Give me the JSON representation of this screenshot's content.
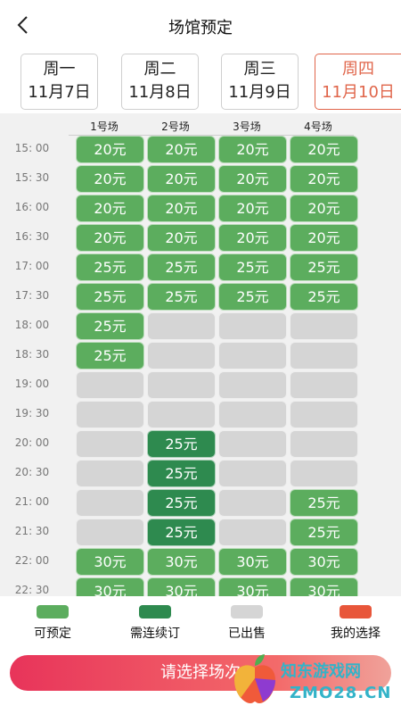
{
  "header": {
    "title": "场馆预定",
    "back_icon": "chevron-left-icon"
  },
  "dates": [
    {
      "weekday": "周一",
      "date": "11月7日",
      "selected": false
    },
    {
      "weekday": "周二",
      "date": "11月8日",
      "selected": false
    },
    {
      "weekday": "周三",
      "date": "11月9日",
      "selected": false
    },
    {
      "weekday": "周四",
      "date": "11月10日",
      "selected": true
    }
  ],
  "courts": [
    "1号场",
    "2号场",
    "3号场",
    "4号场"
  ],
  "schedule": [
    {
      "time": "15: 00",
      "slots": [
        [
          "available",
          "20元"
        ],
        [
          "available",
          "20元"
        ],
        [
          "available",
          "20元"
        ],
        [
          "available",
          "20元"
        ]
      ]
    },
    {
      "time": "15: 30",
      "slots": [
        [
          "available",
          "20元"
        ],
        [
          "available",
          "20元"
        ],
        [
          "available",
          "20元"
        ],
        [
          "available",
          "20元"
        ]
      ]
    },
    {
      "time": "16: 00",
      "slots": [
        [
          "available",
          "20元"
        ],
        [
          "available",
          "20元"
        ],
        [
          "available",
          "20元"
        ],
        [
          "available",
          "20元"
        ]
      ]
    },
    {
      "time": "16: 30",
      "slots": [
        [
          "available",
          "20元"
        ],
        [
          "available",
          "20元"
        ],
        [
          "available",
          "20元"
        ],
        [
          "available",
          "20元"
        ]
      ]
    },
    {
      "time": "17: 00",
      "slots": [
        [
          "available",
          "25元"
        ],
        [
          "available",
          "25元"
        ],
        [
          "available",
          "25元"
        ],
        [
          "available",
          "25元"
        ]
      ]
    },
    {
      "time": "17: 30",
      "slots": [
        [
          "available",
          "25元"
        ],
        [
          "available",
          "25元"
        ],
        [
          "available",
          "25元"
        ],
        [
          "available",
          "25元"
        ]
      ]
    },
    {
      "time": "18: 00",
      "slots": [
        [
          "available",
          "25元"
        ],
        [
          "sold",
          ""
        ],
        [
          "sold",
          ""
        ],
        [
          "sold",
          ""
        ]
      ]
    },
    {
      "time": "18: 30",
      "slots": [
        [
          "available",
          "25元"
        ],
        [
          "sold",
          ""
        ],
        [
          "sold",
          ""
        ],
        [
          "sold",
          ""
        ]
      ]
    },
    {
      "time": "19: 00",
      "slots": [
        [
          "sold",
          ""
        ],
        [
          "sold",
          ""
        ],
        [
          "sold",
          ""
        ],
        [
          "sold",
          ""
        ]
      ]
    },
    {
      "time": "19: 30",
      "slots": [
        [
          "sold",
          ""
        ],
        [
          "sold",
          ""
        ],
        [
          "sold",
          ""
        ],
        [
          "sold",
          ""
        ]
      ]
    },
    {
      "time": "20: 00",
      "slots": [
        [
          "sold",
          ""
        ],
        [
          "renew",
          "25元"
        ],
        [
          "sold",
          ""
        ],
        [
          "sold",
          ""
        ]
      ]
    },
    {
      "time": "20: 30",
      "slots": [
        [
          "sold",
          ""
        ],
        [
          "renew",
          "25元"
        ],
        [
          "sold",
          ""
        ],
        [
          "sold",
          ""
        ]
      ]
    },
    {
      "time": "21: 00",
      "slots": [
        [
          "sold",
          ""
        ],
        [
          "renew",
          "25元"
        ],
        [
          "sold",
          ""
        ],
        [
          "available",
          "25元"
        ]
      ]
    },
    {
      "time": "21: 30",
      "slots": [
        [
          "sold",
          ""
        ],
        [
          "renew",
          "25元"
        ],
        [
          "sold",
          ""
        ],
        [
          "available",
          "25元"
        ]
      ]
    },
    {
      "time": "22: 00",
      "slots": [
        [
          "available",
          "30元"
        ],
        [
          "available",
          "30元"
        ],
        [
          "available",
          "30元"
        ],
        [
          "available",
          "30元"
        ]
      ]
    },
    {
      "time": "22: 30",
      "slots": [
        [
          "available",
          "30元"
        ],
        [
          "available",
          "30元"
        ],
        [
          "available",
          "30元"
        ],
        [
          "available",
          "30元"
        ]
      ]
    }
  ],
  "legend": [
    {
      "label": "可预定",
      "color": "#5cad5e"
    },
    {
      "label": "需连续订",
      "color": "#2e8a4f"
    },
    {
      "label": "已出售",
      "color": "#d5d5d5"
    },
    {
      "label": "我的选择",
      "color": "#e8563a"
    }
  ],
  "footer": {
    "button_label": "请选择场次"
  },
  "watermark": {
    "text": "知东游戏网",
    "sub": "ZMO28.CN"
  }
}
